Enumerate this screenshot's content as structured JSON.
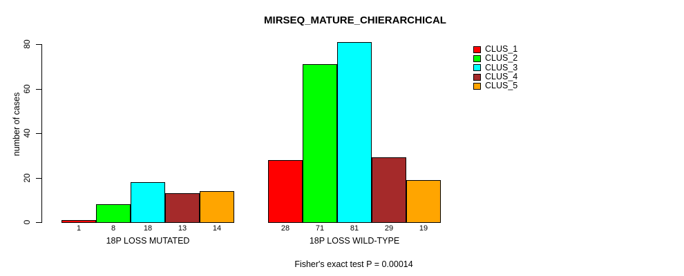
{
  "title": "MIRSEQ_MATURE_CHIERARCHICAL",
  "caption": "Fisher's exact test P = 0.00014",
  "chart_data": {
    "type": "bar",
    "title": "MIRSEQ_MATURE_CHIERARCHICAL",
    "ylabel": "number of cases",
    "xlabel": "",
    "ylim": [
      0,
      80
    ],
    "yticks": [
      0,
      20,
      40,
      60,
      80
    ],
    "grid": false,
    "legend_position": "right-outside",
    "bar_value_labels_shown": true,
    "categories": [
      "18P LOSS MUTATED",
      "18P LOSS WILD-TYPE"
    ],
    "series": [
      {
        "name": "CLUS_1",
        "color": "#FF0000",
        "values": [
          1,
          28
        ]
      },
      {
        "name": "CLUS_2",
        "color": "#00FF00",
        "values": [
          8,
          71
        ]
      },
      {
        "name": "CLUS_3",
        "color": "#00FFFF",
        "values": [
          18,
          81
        ]
      },
      {
        "name": "CLUS_4",
        "color": "#A52A2A",
        "values": [
          13,
          29
        ]
      },
      {
        "name": "CLUS_5",
        "color": "#FFA500",
        "values": [
          14,
          19
        ]
      }
    ],
    "annotation": "Fisher's exact test P = 0.00014"
  }
}
